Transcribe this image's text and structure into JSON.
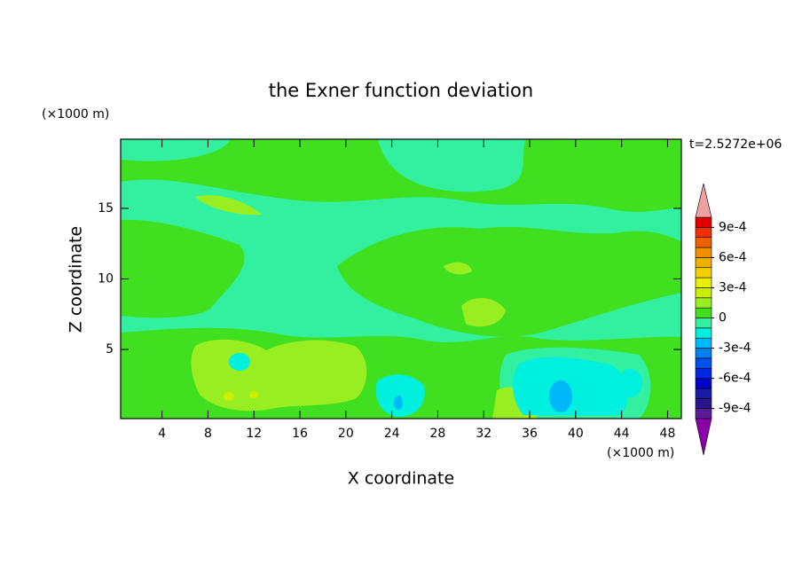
{
  "chart_data": {
    "type": "contour",
    "title": "the Exner function deviation",
    "x_label": "X coordinate",
    "y_label": "Z coordinate",
    "x_unit": "(×1000 m)",
    "y_unit": "(×1000 m)",
    "time_label": "t=2.5272e+06",
    "xlim": [
      0.4,
      49.2
    ],
    "ylim": [
      0.1,
      19.9
    ],
    "xticks": [
      4,
      8,
      12,
      16,
      20,
      24,
      28,
      32,
      36,
      40,
      44,
      48
    ],
    "yticks": [
      5,
      10,
      15
    ],
    "colorbar": {
      "levels": [
        -0.001,
        -0.0009,
        -0.0008,
        -0.0007,
        -0.0006,
        -0.0005,
        -0.0004,
        -0.0003,
        -0.0002,
        -0.0001,
        0,
        0.0001,
        0.0002,
        0.0003,
        0.0004,
        0.0005,
        0.0006,
        0.0007,
        0.0008,
        0.0009,
        0.001
      ],
      "colors": [
        "#5a1a9a",
        "#2a148a",
        "#1a1aa8",
        "#0000c8",
        "#0028e0",
        "#0050f0",
        "#0080f0",
        "#00b8f8",
        "#00f0e0",
        "#33f0a0",
        "#40e020",
        "#99ee22",
        "#c8f000",
        "#e8f000",
        "#f0d000",
        "#f0b000",
        "#f09000",
        "#f06000",
        "#f03000",
        "#e00000"
      ],
      "over_color": "#f0a0a0",
      "under_color": "#8a00a8",
      "ticks": [
        {
          "value": 0.0009,
          "label": "9e-4"
        },
        {
          "value": 0.0006,
          "label": "6e-4"
        },
        {
          "value": 0.0003,
          "label": "3e-4"
        },
        0,
        {
          "value": -0.0003,
          "label": "-3e-4"
        },
        {
          "value": -0.0006,
          "label": "-6e-4"
        },
        {
          "value": -0.0009,
          "label": "-9e-4"
        }
      ]
    }
  }
}
